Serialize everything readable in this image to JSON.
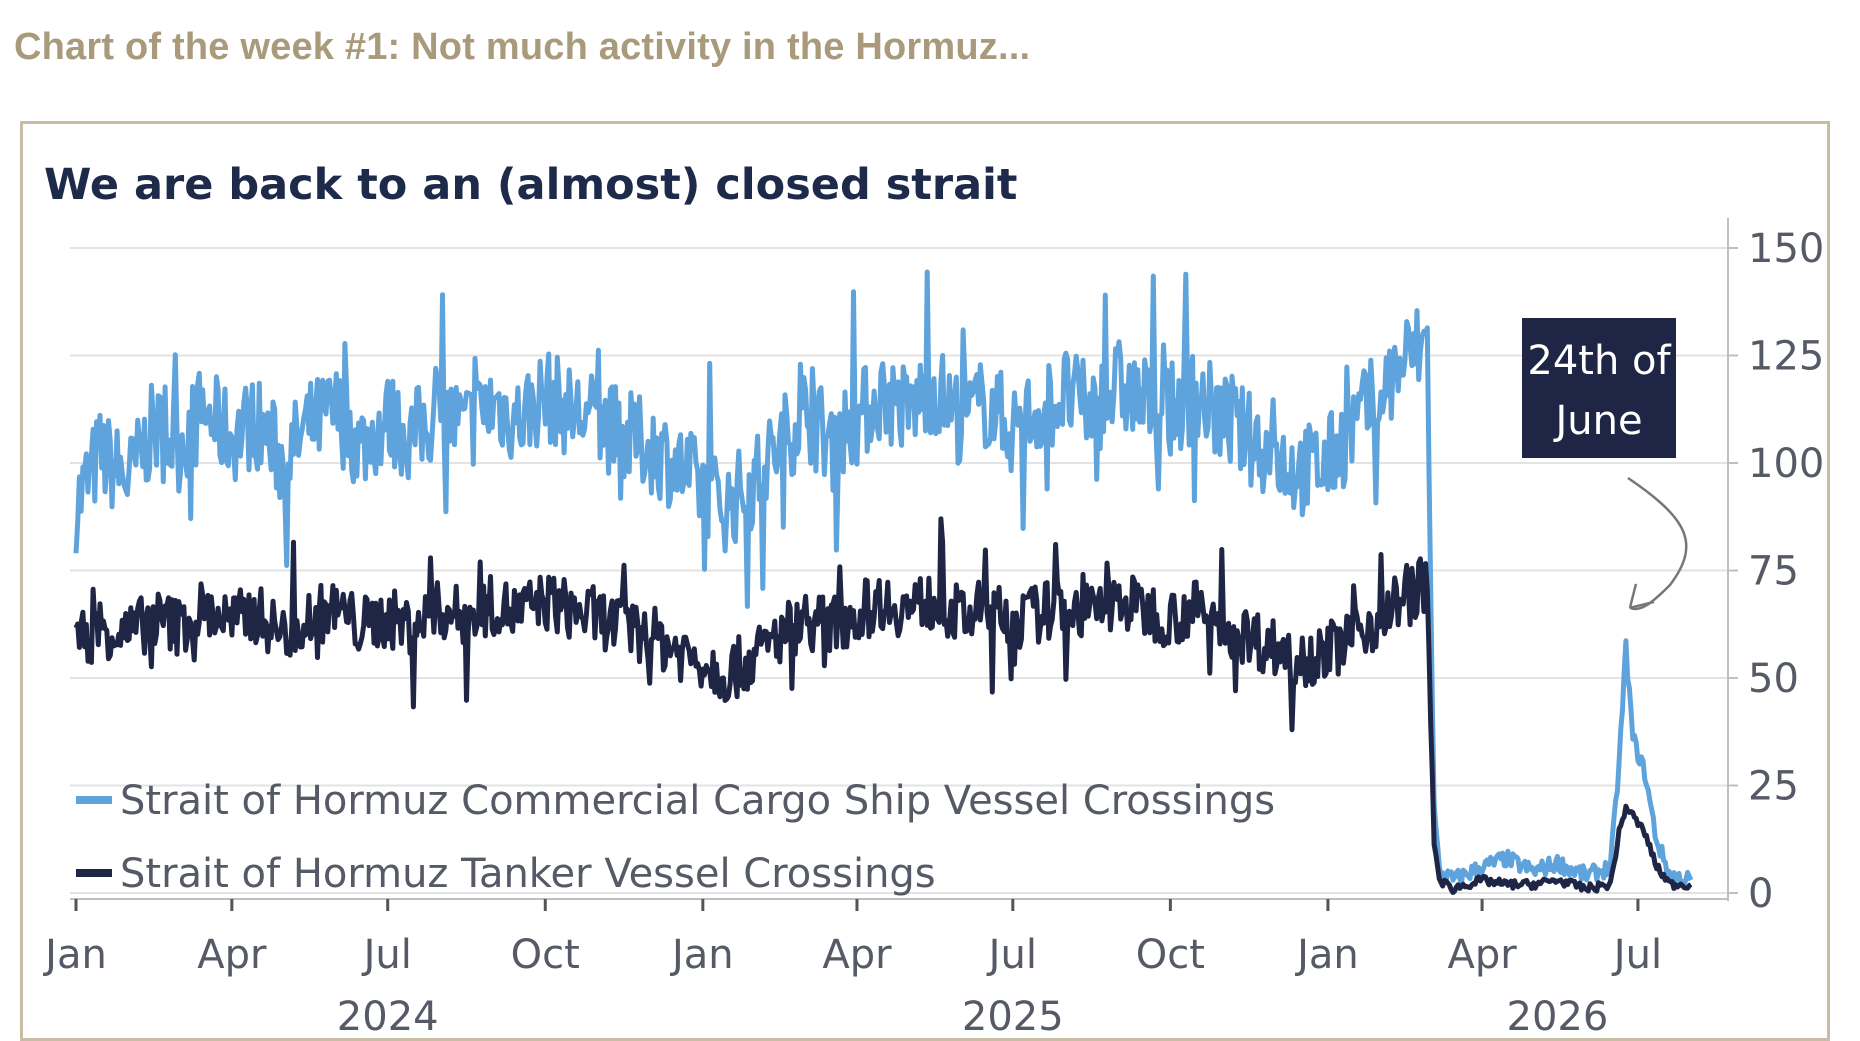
{
  "page": {
    "heading": "Chart of the week #1: Not much activity in the Hormuz..."
  },
  "chart_data": {
    "type": "line",
    "title": "We are back to an (almost) closed strait",
    "xlabel": "",
    "ylabel": "",
    "ylim": [
      0,
      150
    ],
    "yticks": [
      0,
      25,
      50,
      75,
      100,
      125,
      150
    ],
    "y_axis_position": "right",
    "grid": "horizontal",
    "xlim": [
      "2024-01-01",
      "2026-08-15"
    ],
    "xticks": [
      {
        "date": "2024-01-01",
        "label": "Jan"
      },
      {
        "date": "2024-04-01",
        "label": "Apr"
      },
      {
        "date": "2024-07-01",
        "label": "Jul"
      },
      {
        "date": "2024-10-01",
        "label": "Oct"
      },
      {
        "date": "2025-01-01",
        "label": "Jan"
      },
      {
        "date": "2025-04-01",
        "label": "Apr"
      },
      {
        "date": "2025-07-01",
        "label": "Jul"
      },
      {
        "date": "2025-10-01",
        "label": "Oct"
      },
      {
        "date": "2026-01-01",
        "label": "Jan"
      },
      {
        "date": "2026-04-01",
        "label": "Apr"
      },
      {
        "date": "2026-07-01",
        "label": "Jul"
      }
    ],
    "year_labels": [
      {
        "date": "2024-07-01",
        "label": "2024"
      },
      {
        "date": "2025-07-01",
        "label": "2025"
      },
      {
        "date": "2026-05-15",
        "label": "2026"
      }
    ],
    "legend_position": "bottom-left",
    "annotation": {
      "text_lines": [
        "24th of",
        "June"
      ],
      "date": "2026-06-24",
      "value": 57
    },
    "series": [
      {
        "name": "Strait of Hormuz Commercial Cargo Ship Vessel Crossings",
        "color": "#5ea3dc",
        "points": [
          [
            "2024-01-01",
            90
          ],
          [
            "2024-01-15",
            102
          ],
          [
            "2024-02-01",
            96
          ],
          [
            "2024-02-15",
            108
          ],
          [
            "2024-03-01",
            104
          ],
          [
            "2024-03-15",
            112
          ],
          [
            "2024-04-01",
            106
          ],
          [
            "2024-04-15",
            110
          ],
          [
            "2024-05-01",
            100
          ],
          [
            "2024-05-15",
            108
          ],
          [
            "2024-06-01",
            112
          ],
          [
            "2024-06-15",
            104
          ],
          [
            "2024-07-01",
            110
          ],
          [
            "2024-07-15",
            106
          ],
          [
            "2024-08-01",
            112
          ],
          [
            "2024-08-15",
            108
          ],
          [
            "2024-09-01",
            114
          ],
          [
            "2024-09-15",
            110
          ],
          [
            "2024-10-01",
            116
          ],
          [
            "2024-10-15",
            112
          ],
          [
            "2024-11-01",
            110
          ],
          [
            "2024-11-15",
            106
          ],
          [
            "2024-12-01",
            104
          ],
          [
            "2024-12-15",
            100
          ],
          [
            "2025-01-01",
            94
          ],
          [
            "2025-01-15",
            90
          ],
          [
            "2025-02-01",
            96
          ],
          [
            "2025-02-15",
            104
          ],
          [
            "2025-03-01",
            112
          ],
          [
            "2025-03-15",
            106
          ],
          [
            "2025-04-01",
            110
          ],
          [
            "2025-04-15",
            116
          ],
          [
            "2025-05-01",
            112
          ],
          [
            "2025-05-15",
            118
          ],
          [
            "2025-06-01",
            110
          ],
          [
            "2025-06-15",
            114
          ],
          [
            "2025-07-01",
            108
          ],
          [
            "2025-07-15",
            112
          ],
          [
            "2025-08-01",
            116
          ],
          [
            "2025-08-15",
            112
          ],
          [
            "2025-09-01",
            118
          ],
          [
            "2025-09-15",
            114
          ],
          [
            "2025-10-01",
            112
          ],
          [
            "2025-10-15",
            116
          ],
          [
            "2025-11-01",
            110
          ],
          [
            "2025-11-15",
            106
          ],
          [
            "2025-12-01",
            102
          ],
          [
            "2025-12-15",
            98
          ],
          [
            "2026-01-01",
            100
          ],
          [
            "2026-01-15",
            108
          ],
          [
            "2026-02-01",
            116
          ],
          [
            "2026-02-15",
            124
          ],
          [
            "2026-02-28",
            128
          ],
          [
            "2026-03-02",
            70
          ],
          [
            "2026-03-04",
            20
          ],
          [
            "2026-03-07",
            5
          ],
          [
            "2026-03-15",
            3
          ],
          [
            "2026-04-01",
            6
          ],
          [
            "2026-04-15",
            8
          ],
          [
            "2026-05-01",
            5
          ],
          [
            "2026-05-15",
            7
          ],
          [
            "2026-06-01",
            4
          ],
          [
            "2026-06-15",
            6
          ],
          [
            "2026-06-20",
            30
          ],
          [
            "2026-06-24",
            57
          ],
          [
            "2026-06-28",
            36
          ],
          [
            "2026-07-05",
            28
          ],
          [
            "2026-07-12",
            12
          ],
          [
            "2026-07-20",
            4
          ],
          [
            "2026-08-01",
            3
          ]
        ]
      },
      {
        "name": "Strait of Hormuz Tanker Vessel Crossings",
        "color": "#1f2645",
        "points": [
          [
            "2024-01-01",
            58
          ],
          [
            "2024-01-15",
            62
          ],
          [
            "2024-02-01",
            60
          ],
          [
            "2024-02-15",
            64
          ],
          [
            "2024-03-01",
            62
          ],
          [
            "2024-03-15",
            66
          ],
          [
            "2024-04-01",
            63
          ],
          [
            "2024-04-15",
            65
          ],
          [
            "2024-05-01",
            60
          ],
          [
            "2024-05-15",
            64
          ],
          [
            "2024-06-01",
            66
          ],
          [
            "2024-06-15",
            62
          ],
          [
            "2024-07-01",
            64
          ],
          [
            "2024-07-15",
            62
          ],
          [
            "2024-08-01",
            66
          ],
          [
            "2024-08-15",
            64
          ],
          [
            "2024-09-01",
            67
          ],
          [
            "2024-09-15",
            65
          ],
          [
            "2024-10-01",
            68
          ],
          [
            "2024-10-15",
            66
          ],
          [
            "2024-11-01",
            64
          ],
          [
            "2024-11-15",
            62
          ],
          [
            "2024-12-01",
            60
          ],
          [
            "2024-12-15",
            57
          ],
          [
            "2025-01-01",
            54
          ],
          [
            "2025-01-15",
            51
          ],
          [
            "2025-02-01",
            55
          ],
          [
            "2025-02-15",
            60
          ],
          [
            "2025-03-01",
            64
          ],
          [
            "2025-03-15",
            62
          ],
          [
            "2025-04-01",
            65
          ],
          [
            "2025-04-15",
            68
          ],
          [
            "2025-05-01",
            66
          ],
          [
            "2025-05-15",
            68
          ],
          [
            "2025-06-01",
            64
          ],
          [
            "2025-06-15",
            66
          ],
          [
            "2025-07-01",
            63
          ],
          [
            "2025-07-15",
            65
          ],
          [
            "2025-08-01",
            67
          ],
          [
            "2025-08-15",
            65
          ],
          [
            "2025-09-01",
            68
          ],
          [
            "2025-09-15",
            66
          ],
          [
            "2025-10-01",
            64
          ],
          [
            "2025-10-15",
            66
          ],
          [
            "2025-11-01",
            62
          ],
          [
            "2025-11-15",
            60
          ],
          [
            "2025-12-01",
            57
          ],
          [
            "2025-12-15",
            55
          ],
          [
            "2026-01-01",
            56
          ],
          [
            "2026-01-15",
            60
          ],
          [
            "2026-02-01",
            64
          ],
          [
            "2026-02-15",
            70
          ],
          [
            "2026-02-28",
            72
          ],
          [
            "2026-03-02",
            40
          ],
          [
            "2026-03-04",
            12
          ],
          [
            "2026-03-07",
            3
          ],
          [
            "2026-03-15",
            1
          ],
          [
            "2026-04-01",
            3
          ],
          [
            "2026-04-15",
            2
          ],
          [
            "2026-05-01",
            2
          ],
          [
            "2026-05-15",
            3
          ],
          [
            "2026-06-01",
            1
          ],
          [
            "2026-06-15",
            2
          ],
          [
            "2026-06-20",
            14
          ],
          [
            "2026-06-24",
            20
          ],
          [
            "2026-06-28",
            18
          ],
          [
            "2026-07-05",
            14
          ],
          [
            "2026-07-12",
            6
          ],
          [
            "2026-07-20",
            2
          ],
          [
            "2026-08-01",
            2
          ]
        ]
      }
    ]
  }
}
